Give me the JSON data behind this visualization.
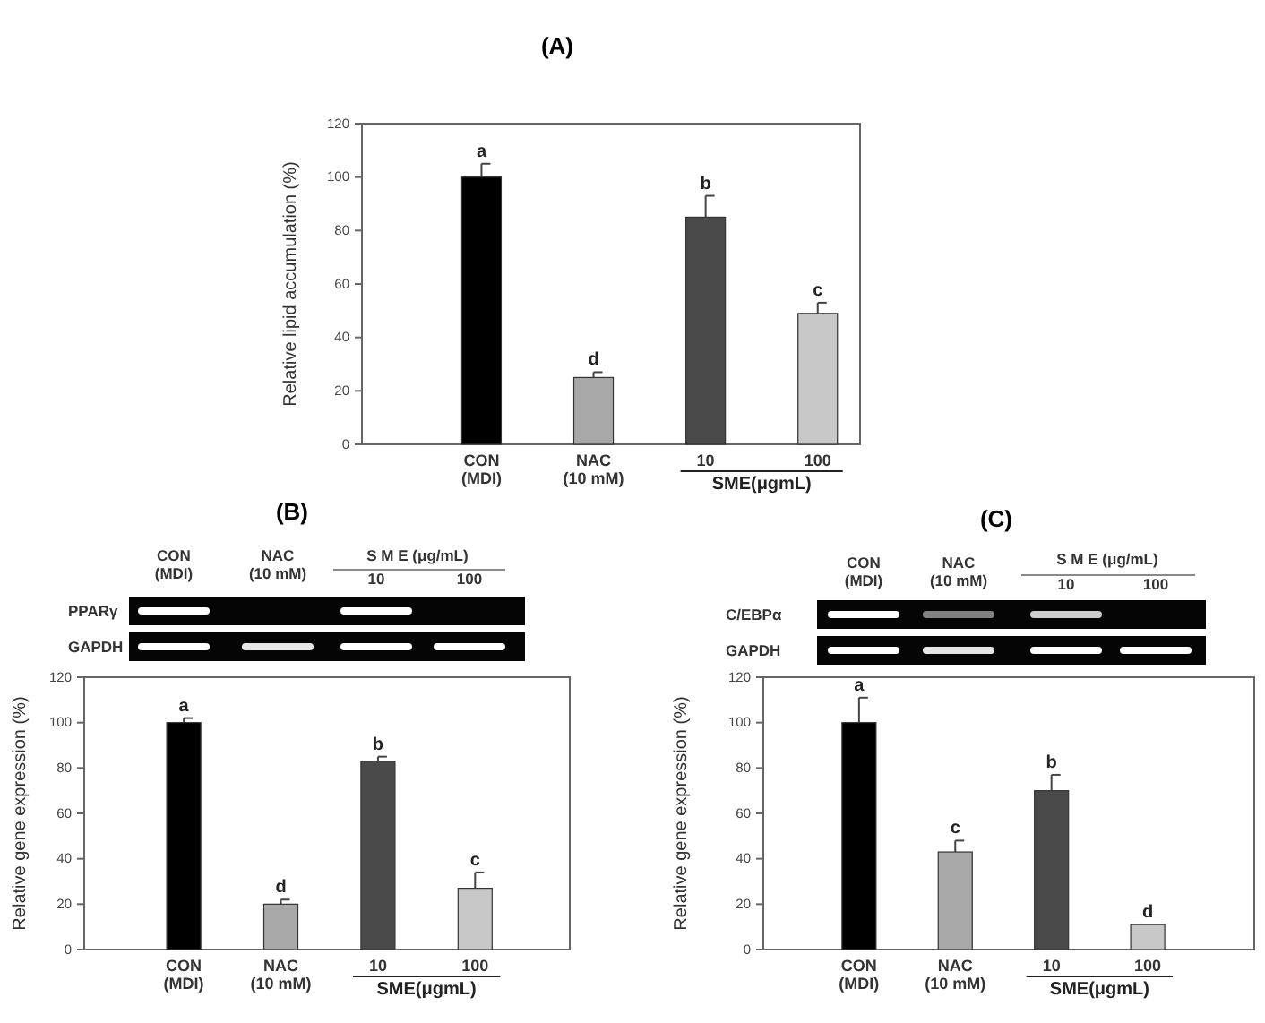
{
  "chart_data": [
    {
      "type": "bar",
      "title": "(A)",
      "ylabel": "Relative lipid accumulation (%)",
      "categories": [
        "CON\n(MDI)",
        "NAC\n(10 mM)",
        "10",
        "100"
      ],
      "values": [
        100,
        25,
        85,
        49
      ],
      "errors": [
        5,
        2,
        8,
        4
      ],
      "colors": [
        "#000000",
        "#a8a8a8",
        "#4a4a4a",
        "#c8c8c8"
      ],
      "ylim": [
        0,
        120
      ],
      "yticks": [
        0,
        20,
        40,
        60,
        80,
        100,
        120
      ],
      "annotations": [
        {
          "text": "a",
          "x": "CON\n(MDI)",
          "y": 105
        },
        {
          "text": "d",
          "x": "NAC\n(10 mM)",
          "y": 27
        },
        {
          "text": "b",
          "x": "10",
          "y": 93
        },
        {
          "text": "c",
          "x": "100",
          "y": 53
        },
        "SME(μgmL)"
      ]
    },
    {
      "type": "bar",
      "title": "(B)",
      "ylabel": "Relative gene expression (%)",
      "categories": [
        "CON\n(MDI)",
        "NAC\n(10 mM)",
        "10",
        "100"
      ],
      "values": [
        100,
        20,
        83,
        27
      ],
      "errors": [
        2,
        2,
        2,
        7
      ],
      "colors": [
        "#000000",
        "#a8a8a8",
        "#4a4a4a",
        "#c8c8c8"
      ],
      "ylim": [
        0,
        120
      ],
      "yticks": [
        0,
        20,
        40,
        60,
        80,
        100,
        120
      ],
      "annotations": [
        {
          "text": "a",
          "x": "CON\n(MDI)",
          "y": 102
        },
        {
          "text": "d",
          "x": "NAC\n(10 mM)",
          "y": 22
        },
        {
          "text": "b",
          "x": "10",
          "y": 85
        },
        {
          "text": "c",
          "x": "100",
          "y": 34
        },
        "SME(μgmL)",
        "CON\n(MDI)",
        "NAC\n(10 mM)",
        "S M E (μg/mL)",
        "10",
        "100",
        "PPARγ",
        "GAPDH"
      ]
    },
    {
      "type": "bar",
      "title": "(C)",
      "ylabel": "Relative gene expression (%)",
      "categories": [
        "CON\n(MDI)",
        "NAC\n(10 mM)",
        "10",
        "100"
      ],
      "values": [
        100,
        43,
        70,
        11
      ],
      "errors": [
        11,
        5,
        7,
        null
      ],
      "colors": [
        "#000000",
        "#a8a8a8",
        "#4a4a4a",
        "#c8c8c8"
      ],
      "ylim": [
        0,
        120
      ],
      "yticks": [
        0,
        20,
        40,
        60,
        80,
        100,
        120
      ],
      "annotations": [
        {
          "text": "a",
          "x": "CON\n(MDI)",
          "y": 111
        },
        {
          "text": "c",
          "x": "NAC\n(10 mM)",
          "y": 48
        },
        {
          "text": "b",
          "x": "10",
          "y": 77
        },
        {
          "text": "d",
          "x": "100",
          "y": 11
        },
        "SME(μgmL)",
        "CON\n(MDI)",
        "NAC\n(10 mM)",
        "S M E (μg/mL)",
        "10",
        "100",
        "C/EBPα",
        "GAPDH"
      ]
    }
  ]
}
